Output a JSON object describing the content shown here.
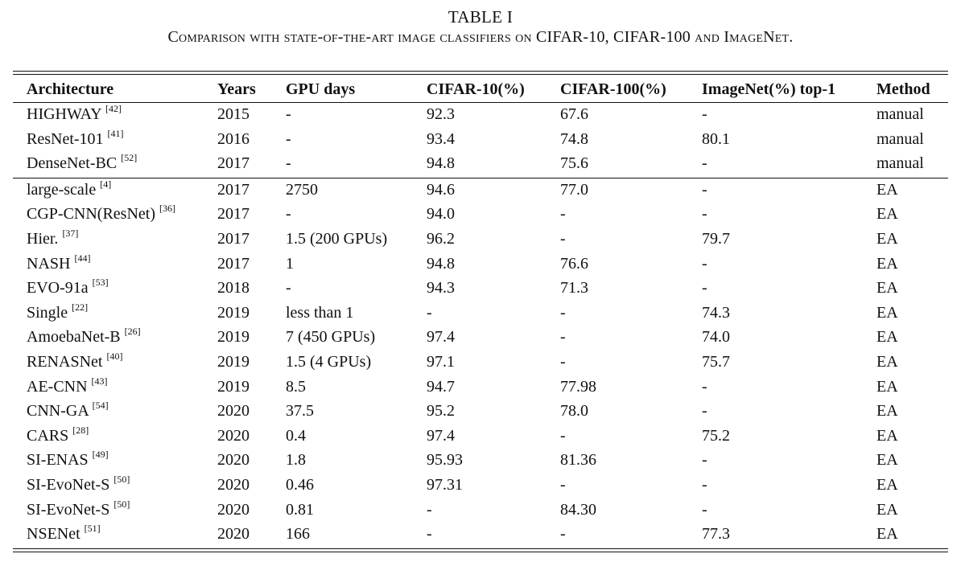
{
  "caption": {
    "label": "TABLE I",
    "title": "Comparison with state-of-the-art image classifiers on CIFAR-10, CIFAR-100 and ImageNet."
  },
  "table": {
    "headers": [
      "Architecture",
      "Years",
      "GPU days",
      "CIFAR-10(%)",
      "CIFAR-100(%)",
      "ImageNet(%) top-1",
      "Method"
    ],
    "rows": [
      {
        "arch": "HIGHWAY",
        "ref": "[42]",
        "year": "2015",
        "gpu": "-",
        "c10": "92.3",
        "c100": "67.6",
        "imagenet": "-",
        "method": "manual"
      },
      {
        "arch": "ResNet-101",
        "ref": "[41]",
        "year": "2016",
        "gpu": "-",
        "c10": "93.4",
        "c100": "74.8",
        "imagenet": "80.1",
        "method": "manual"
      },
      {
        "arch": "DenseNet-BC",
        "ref": "[52]",
        "year": "2017",
        "gpu": "-",
        "c10": "94.8",
        "c100": "75.6",
        "imagenet": "-",
        "method": "manual"
      },
      {
        "arch": "large-scale",
        "ref": "[4]",
        "year": "2017",
        "gpu": "2750",
        "c10": "94.6",
        "c100": "77.0",
        "imagenet": "-",
        "method": "EA"
      },
      {
        "arch": "CGP-CNN(ResNet)",
        "ref": "[36]",
        "year": "2017",
        "gpu": "-",
        "c10": "94.0",
        "c100": "-",
        "imagenet": "-",
        "method": "EA"
      },
      {
        "arch": "Hier.",
        "ref": "[37]",
        "year": "2017",
        "gpu": "1.5 (200 GPUs)",
        "c10": "96.2",
        "c100": "-",
        "imagenet": "79.7",
        "method": "EA"
      },
      {
        "arch": "NASH",
        "ref": "[44]",
        "year": "2017",
        "gpu": "1",
        "c10": "94.8",
        "c100": "76.6",
        "imagenet": "-",
        "method": "EA"
      },
      {
        "arch": "EVO-91a",
        "ref": "[53]",
        "year": "2018",
        "gpu": "-",
        "c10": "94.3",
        "c100": "71.3",
        "imagenet": "-",
        "method": "EA"
      },
      {
        "arch": "Single",
        "ref": "[22]",
        "year": "2019",
        "gpu": "less than 1",
        "c10": "-",
        "c100": "-",
        "imagenet": "74.3",
        "method": "EA"
      },
      {
        "arch": "AmoebaNet-B",
        "ref": "[26]",
        "year": "2019",
        "gpu": "7 (450 GPUs)",
        "c10": "97.4",
        "c100": "-",
        "imagenet": "74.0",
        "method": "EA"
      },
      {
        "arch": "RENASNet",
        "ref": "[40]",
        "year": "2019",
        "gpu": "1.5 (4 GPUs)",
        "c10": "97.1",
        "c100": "-",
        "imagenet": "75.7",
        "method": "EA"
      },
      {
        "arch": "AE-CNN",
        "ref": "[43]",
        "year": "2019",
        "gpu": "8.5",
        "c10": "94.7",
        "c100": "77.98",
        "imagenet": "-",
        "method": "EA"
      },
      {
        "arch": "CNN-GA",
        "ref": "[54]",
        "year": "2020",
        "gpu": "37.5",
        "c10": "95.2",
        "c100": "78.0",
        "imagenet": "-",
        "method": "EA"
      },
      {
        "arch": "CARS",
        "ref": "[28]",
        "year": "2020",
        "gpu": "0.4",
        "c10": "97.4",
        "c100": "-",
        "imagenet": "75.2",
        "method": "EA"
      },
      {
        "arch": "SI-ENAS",
        "ref": "[49]",
        "year": "2020",
        "gpu": "1.8",
        "c10": "95.93",
        "c100": "81.36",
        "imagenet": "-",
        "method": "EA"
      },
      {
        "arch": "SI-EvoNet-S",
        "ref": "[50]",
        "year": "2020",
        "gpu": "0.46",
        "c10": "97.31",
        "c100": "-",
        "imagenet": "-",
        "method": "EA"
      },
      {
        "arch": "SI-EvoNet-S",
        "ref": "[50]",
        "year": "2020",
        "gpu": "0.81",
        "c10": "-",
        "c100": "84.30",
        "imagenet": "-",
        "method": "EA"
      },
      {
        "arch": "NSENet",
        "ref": "[51]",
        "year": "2020",
        "gpu": "166",
        "c10": "-",
        "c100": "-",
        "imagenet": "77.3",
        "method": "EA"
      }
    ]
  }
}
